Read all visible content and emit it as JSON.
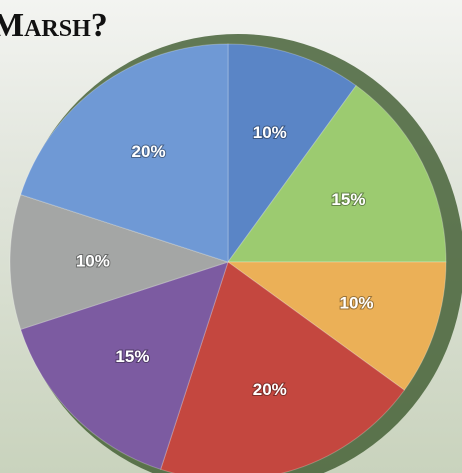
{
  "chart_data": {
    "type": "pie",
    "title": "Marsh?",
    "values": [
      10,
      15,
      10,
      20,
      15,
      10,
      20
    ],
    "value_labels": [
      "10%",
      "15%",
      "10%",
      "20%",
      "15%",
      "10%",
      "20%"
    ],
    "colors": [
      "#5a85c6",
      "#9ccb70",
      "#ebb057",
      "#c4473f",
      "#7c5ba1",
      "#a4a6a5",
      "#6f99d5"
    ],
    "start_angle": 0,
    "direction": "clockwise"
  }
}
